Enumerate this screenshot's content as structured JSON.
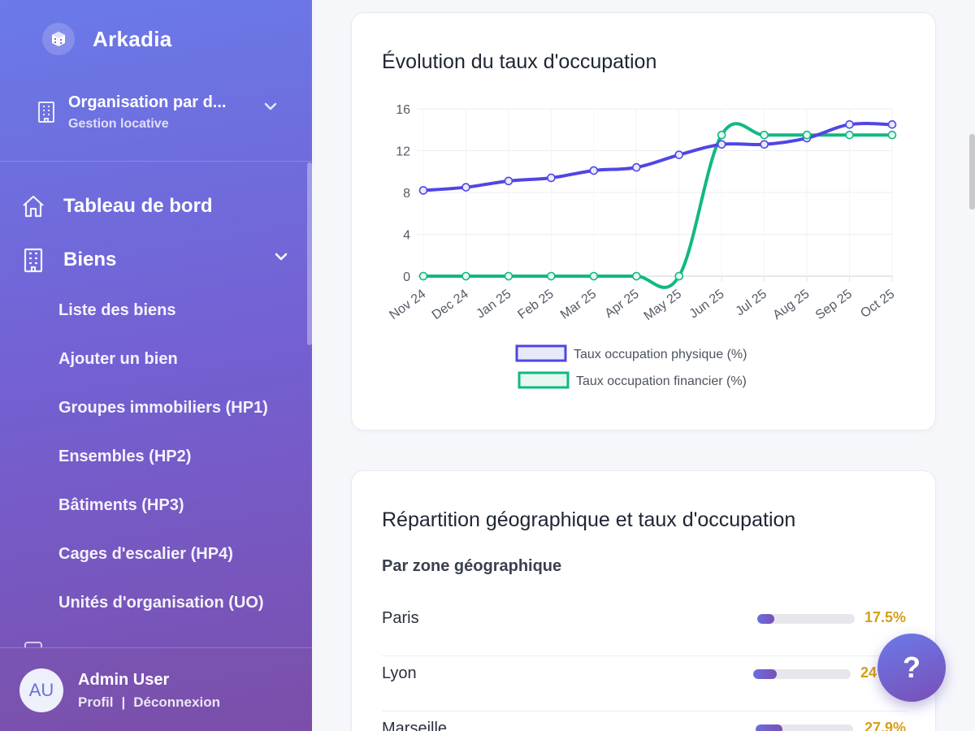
{
  "brand": {
    "name": "Arkadia"
  },
  "organisation": {
    "name": "Organisation par d...",
    "subtitle": "Gestion locative"
  },
  "nav": {
    "dashboard": "Tableau de bord",
    "biens": "Biens",
    "sub_items": [
      "Liste des biens",
      "Ajouter un bien",
      "Groupes immobiliers (HP1)",
      "Ensembles (HP2)",
      "Bâtiments (HP3)",
      "Cages d'escalier (HP4)",
      "Unités d'organisation (UO)"
    ]
  },
  "user": {
    "initials": "AU",
    "name": "Admin User",
    "profile": "Profil",
    "separator": "|",
    "logout": "Déconnexion"
  },
  "chart_card": {
    "title": "Évolution du taux d'occupation"
  },
  "chart_data": {
    "type": "line",
    "title": "Évolution du taux d'occupation",
    "categories": [
      "Nov 24",
      "Dec 24",
      "Jan 25",
      "Feb 25",
      "Mar 25",
      "Apr 25",
      "May 25",
      "Jun 25",
      "Jul 25",
      "Aug 25",
      "Sep 25",
      "Oct 25"
    ],
    "ylim": [
      0,
      16
    ],
    "yticks": [
      0,
      4,
      8,
      12,
      16
    ],
    "grid": true,
    "legend_position": "bottom",
    "series": [
      {
        "name": "Taux occupation physique (%)",
        "color": "#4f46e5",
        "fill": "#e8e9fb",
        "values": [
          8.2,
          8.5,
          9.1,
          9.4,
          10.1,
          10.4,
          11.6,
          12.6,
          12.6,
          13.2,
          14.5,
          14.5
        ]
      },
      {
        "name": "Taux occupation financier (%)",
        "color": "#10b981",
        "fill": "#e6f8f1",
        "values": [
          0,
          0,
          0,
          0,
          0,
          0,
          0,
          13.5,
          13.5,
          13.5,
          13.5,
          13.5
        ]
      }
    ]
  },
  "geo_card": {
    "title": "Répartition géographique et taux d'occupation",
    "subheading": "Par zone géographique",
    "zones": [
      {
        "name": "Paris",
        "percent": "17.5%",
        "value": 17.5
      },
      {
        "name": "Lyon",
        "percent": "24",
        "value": 24
      },
      {
        "name": "Marseille",
        "percent": "27.9%",
        "value": 27.9
      }
    ]
  },
  "help": {
    "label": "?"
  }
}
